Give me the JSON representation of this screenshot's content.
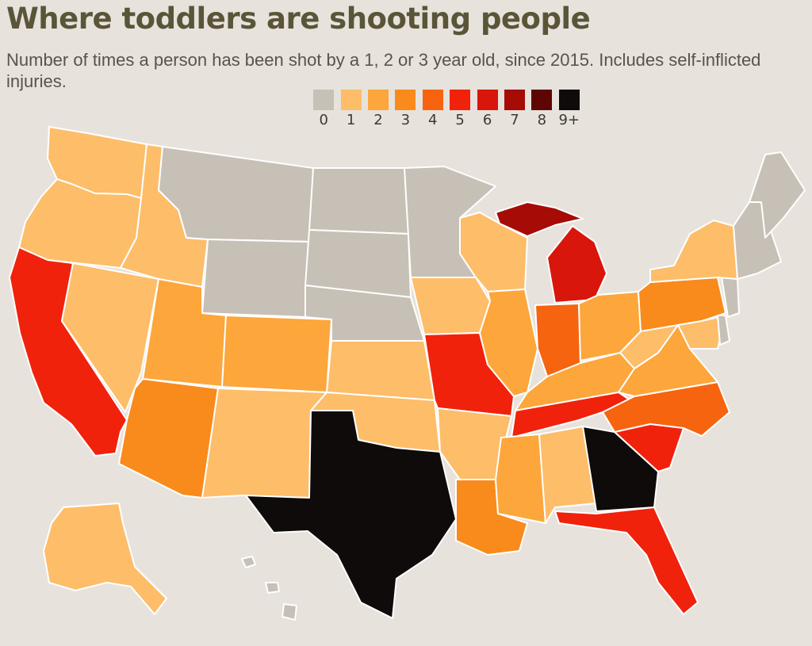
{
  "title": "Where toddlers are shooting people",
  "subtitle": "Number of times a person has been shot by a 1, 2 or 3 year old, since 2015. Includes self-inflicted injuries.",
  "legend": {
    "items": [
      {
        "label": "0",
        "color": "#c7c0b6"
      },
      {
        "label": "1",
        "color": "#fdbd69"
      },
      {
        "label": "2",
        "color": "#fca63b"
      },
      {
        "label": "3",
        "color": "#f98a1c"
      },
      {
        "label": "4",
        "color": "#f7640f"
      },
      {
        "label": "5",
        "color": "#f0220c"
      },
      {
        "label": "6",
        "color": "#d9160b"
      },
      {
        "label": "7",
        "color": "#a60b06"
      },
      {
        "label": "8",
        "color": "#5e0603"
      },
      {
        "label": "9+",
        "color": "#0f0b0a"
      }
    ]
  },
  "map": {
    "background_color": "#e7e2dc",
    "border_color": "#ffffff",
    "states": [
      {
        "id": "WA",
        "value": 1
      },
      {
        "id": "OR",
        "value": 1
      },
      {
        "id": "CA",
        "value": 5
      },
      {
        "id": "NV",
        "value": 1
      },
      {
        "id": "ID",
        "value": 1
      },
      {
        "id": "MT",
        "value": 0
      },
      {
        "id": "WY",
        "value": 0
      },
      {
        "id": "UT",
        "value": 2
      },
      {
        "id": "AZ",
        "value": 3
      },
      {
        "id": "CO",
        "value": 2
      },
      {
        "id": "NM",
        "value": 1
      },
      {
        "id": "ND",
        "value": 0
      },
      {
        "id": "SD",
        "value": 0
      },
      {
        "id": "NE",
        "value": 0
      },
      {
        "id": "KS",
        "value": 1
      },
      {
        "id": "OK",
        "value": 1
      },
      {
        "id": "TX",
        "value": 9
      },
      {
        "id": "MN",
        "value": 0
      },
      {
        "id": "IA",
        "value": 1
      },
      {
        "id": "MO",
        "value": 5
      },
      {
        "id": "AR",
        "value": 1
      },
      {
        "id": "LA",
        "value": 3
      },
      {
        "id": "WI",
        "value": 1
      },
      {
        "id": "IL",
        "value": 2
      },
      {
        "id": "MI_UP",
        "value": 7
      },
      {
        "id": "MI",
        "value": 6
      },
      {
        "id": "IN",
        "value": 4
      },
      {
        "id": "OH",
        "value": 2
      },
      {
        "id": "KY",
        "value": 2
      },
      {
        "id": "TN",
        "value": 5
      },
      {
        "id": "MS",
        "value": 2
      },
      {
        "id": "AL",
        "value": 1
      },
      {
        "id": "GA",
        "value": 9
      },
      {
        "id": "FL",
        "value": 5
      },
      {
        "id": "SC",
        "value": 5
      },
      {
        "id": "NC",
        "value": 4
      },
      {
        "id": "VA",
        "value": 2
      },
      {
        "id": "WV",
        "value": 1
      },
      {
        "id": "PA",
        "value": 3
      },
      {
        "id": "NY",
        "value": 1
      },
      {
        "id": "MD",
        "value": 1
      },
      {
        "id": "DE",
        "value": 0
      },
      {
        "id": "NJ",
        "value": 0
      },
      {
        "id": "NE_STATES",
        "value": 0
      },
      {
        "id": "ME",
        "value": 0
      },
      {
        "id": "AK",
        "value": 1
      },
      {
        "id": "HI",
        "value": 0
      }
    ]
  }
}
